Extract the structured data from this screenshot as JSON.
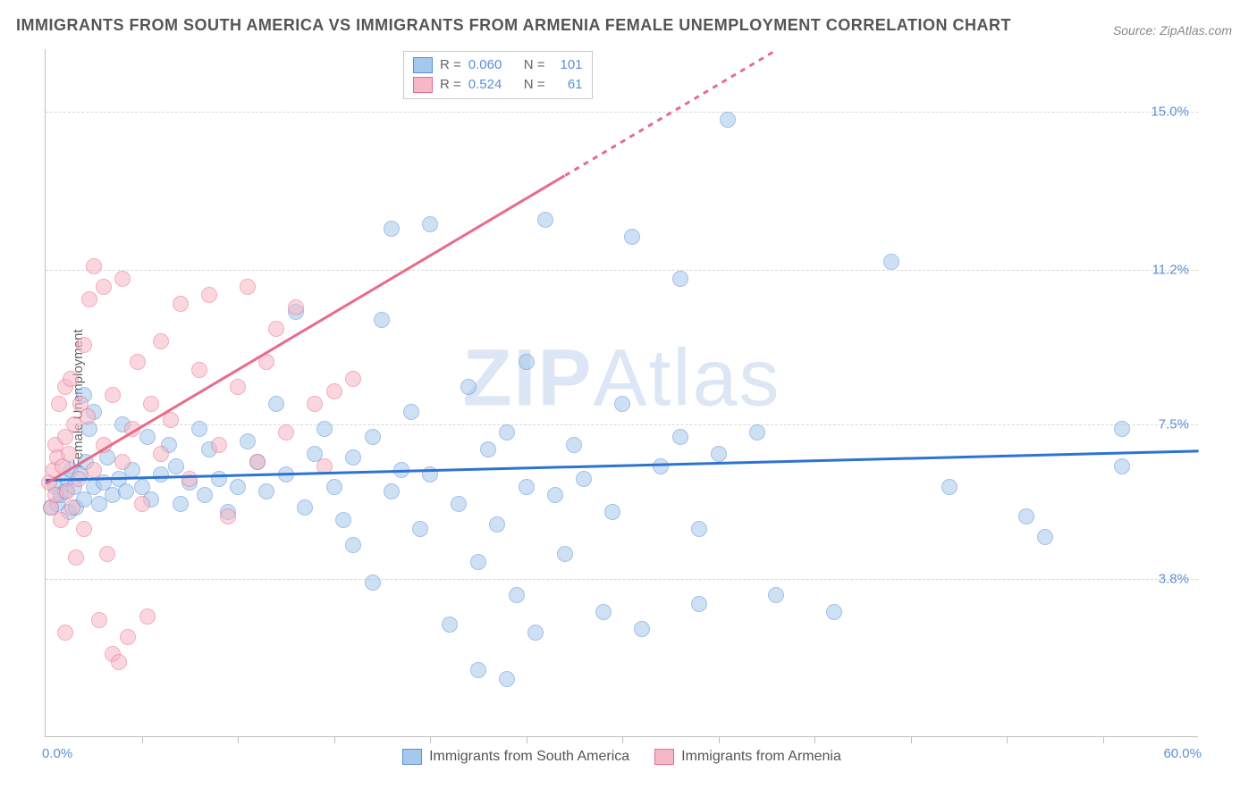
{
  "title": "IMMIGRANTS FROM SOUTH AMERICA VS IMMIGRANTS FROM ARMENIA FEMALE UNEMPLOYMENT CORRELATION CHART",
  "source": "Source: ZipAtlas.com",
  "ylabel": "Female Unemployment",
  "watermark_bold": "ZIP",
  "watermark_light": "Atlas",
  "chart": {
    "type": "scatter",
    "xlim": [
      0,
      60
    ],
    "ylim": [
      0,
      16.5
    ],
    "x_min_label": "0.0%",
    "x_max_label": "60.0%",
    "x_tick_positions": [
      5,
      10,
      15,
      20,
      25,
      30,
      35,
      40,
      45,
      50,
      55
    ],
    "y_ticks": [
      {
        "value": 3.8,
        "label": "3.8%"
      },
      {
        "value": 7.5,
        "label": "7.5%"
      },
      {
        "value": 11.2,
        "label": "11.2%"
      },
      {
        "value": 15.0,
        "label": "15.0%"
      }
    ],
    "background_color": "#ffffff",
    "grid_color": "#d8d8d8",
    "axis_color": "#c0c0c0",
    "series": [
      {
        "name": "Immigrants from South America",
        "color_fill": "#a6c8ec",
        "color_stroke": "#5b8fd6",
        "marker_radius": 9,
        "fill_opacity": 0.55,
        "regression": {
          "x1": 0,
          "y1": 6.2,
          "x2": 60,
          "y2": 6.9,
          "color": "#2d73d2",
          "width": 2.5,
          "dash_after_x": 60
        },
        "R": "0.060",
        "N": "101",
        "points": [
          [
            0.3,
            5.5
          ],
          [
            0.5,
            6.0
          ],
          [
            0.6,
            5.6
          ],
          [
            0.8,
            5.8
          ],
          [
            1.0,
            5.9
          ],
          [
            1.1,
            6.2
          ],
          [
            1.2,
            5.4
          ],
          [
            1.3,
            6.4
          ],
          [
            1.5,
            6.0
          ],
          [
            1.6,
            5.5
          ],
          [
            1.8,
            6.3
          ],
          [
            2.0,
            5.7
          ],
          [
            2.1,
            6.6
          ],
          [
            2.3,
            7.4
          ],
          [
            2.5,
            6.0
          ],
          [
            2.5,
            7.8
          ],
          [
            2.8,
            5.6
          ],
          [
            3.0,
            6.1
          ],
          [
            3.2,
            6.7
          ],
          [
            3.5,
            5.8
          ],
          [
            3.8,
            6.2
          ],
          [
            4.0,
            7.5
          ],
          [
            4.2,
            5.9
          ],
          [
            4.5,
            6.4
          ],
          [
            5.0,
            6.0
          ],
          [
            5.3,
            7.2
          ],
          [
            5.5,
            5.7
          ],
          [
            6.0,
            6.3
          ],
          [
            6.4,
            7.0
          ],
          [
            6.8,
            6.5
          ],
          [
            7.0,
            5.6
          ],
          [
            7.5,
            6.1
          ],
          [
            8.0,
            7.4
          ],
          [
            8.3,
            5.8
          ],
          [
            8.5,
            6.9
          ],
          [
            9.0,
            6.2
          ],
          [
            9.5,
            5.4
          ],
          [
            10.0,
            6.0
          ],
          [
            10.5,
            7.1
          ],
          [
            11.0,
            6.6
          ],
          [
            11.5,
            5.9
          ],
          [
            12.0,
            8.0
          ],
          [
            12.5,
            6.3
          ],
          [
            13.0,
            10.2
          ],
          [
            13.5,
            5.5
          ],
          [
            14.0,
            6.8
          ],
          [
            14.5,
            7.4
          ],
          [
            15.0,
            6.0
          ],
          [
            15.5,
            5.2
          ],
          [
            16.0,
            6.7
          ],
          [
            16.0,
            4.6
          ],
          [
            17.0,
            7.2
          ],
          [
            17.0,
            3.7
          ],
          [
            17.5,
            10.0
          ],
          [
            18.0,
            5.9
          ],
          [
            18.5,
            6.4
          ],
          [
            18.0,
            12.2
          ],
          [
            19.0,
            7.8
          ],
          [
            19.5,
            5.0
          ],
          [
            20.0,
            6.3
          ],
          [
            20.0,
            12.3
          ],
          [
            21.0,
            2.7
          ],
          [
            21.5,
            5.6
          ],
          [
            22.0,
            8.4
          ],
          [
            22.5,
            4.2
          ],
          [
            22.5,
            1.6
          ],
          [
            23.0,
            6.9
          ],
          [
            23.5,
            5.1
          ],
          [
            24.0,
            7.3
          ],
          [
            24.5,
            3.4
          ],
          [
            24.0,
            1.4
          ],
          [
            25.0,
            6.0
          ],
          [
            25.0,
            9.0
          ],
          [
            25.5,
            2.5
          ],
          [
            26.0,
            12.4
          ],
          [
            26.5,
            5.8
          ],
          [
            27.0,
            4.4
          ],
          [
            27.5,
            7.0
          ],
          [
            28.0,
            6.2
          ],
          [
            29.0,
            3.0
          ],
          [
            29.5,
            5.4
          ],
          [
            30.0,
            8.0
          ],
          [
            30.5,
            12.0
          ],
          [
            31.0,
            2.6
          ],
          [
            32.0,
            6.5
          ],
          [
            33.0,
            7.2
          ],
          [
            33.0,
            11.0
          ],
          [
            34.0,
            5.0
          ],
          [
            34.0,
            3.2
          ],
          [
            35.0,
            6.8
          ],
          [
            35.5,
            14.8
          ],
          [
            37.0,
            7.3
          ],
          [
            38.0,
            3.4
          ],
          [
            41.0,
            3.0
          ],
          [
            44.0,
            11.4
          ],
          [
            47.0,
            6.0
          ],
          [
            51.0,
            5.3
          ],
          [
            52.0,
            4.8
          ],
          [
            56.0,
            6.5
          ],
          [
            56.0,
            7.4
          ],
          [
            2.0,
            8.2
          ]
        ]
      },
      {
        "name": "Immigrants from Armenia",
        "color_fill": "#f6b8c6",
        "color_stroke": "#e86b8a",
        "marker_radius": 9,
        "fill_opacity": 0.55,
        "regression": {
          "x1": 0,
          "y1": 6.1,
          "x2": 38,
          "y2": 16.5,
          "color": "#e86b8a",
          "width": 2.5,
          "dash_after_x": 27
        },
        "R": "0.524",
        "N": "61",
        "points": [
          [
            0.2,
            6.1
          ],
          [
            0.3,
            5.5
          ],
          [
            0.4,
            6.4
          ],
          [
            0.5,
            7.0
          ],
          [
            0.5,
            5.8
          ],
          [
            0.6,
            6.7
          ],
          [
            0.7,
            8.0
          ],
          [
            0.8,
            5.2
          ],
          [
            0.9,
            6.5
          ],
          [
            1.0,
            7.2
          ],
          [
            1.0,
            8.4
          ],
          [
            1.1,
            5.9
          ],
          [
            1.2,
            6.8
          ],
          [
            1.3,
            8.6
          ],
          [
            1.4,
            5.5
          ],
          [
            1.5,
            7.5
          ],
          [
            1.6,
            4.3
          ],
          [
            1.7,
            6.2
          ],
          [
            1.8,
            8.0
          ],
          [
            2.0,
            9.4
          ],
          [
            2.0,
            5.0
          ],
          [
            2.2,
            7.7
          ],
          [
            2.3,
            10.5
          ],
          [
            2.5,
            6.4
          ],
          [
            2.5,
            11.3
          ],
          [
            2.8,
            2.8
          ],
          [
            3.0,
            7.0
          ],
          [
            3.0,
            10.8
          ],
          [
            3.2,
            4.4
          ],
          [
            3.5,
            2.0
          ],
          [
            3.5,
            8.2
          ],
          [
            3.8,
            1.8
          ],
          [
            4.0,
            6.6
          ],
          [
            4.0,
            11.0
          ],
          [
            4.3,
            2.4
          ],
          [
            4.5,
            7.4
          ],
          [
            4.8,
            9.0
          ],
          [
            5.0,
            5.6
          ],
          [
            5.3,
            2.9
          ],
          [
            5.5,
            8.0
          ],
          [
            6.0,
            6.8
          ],
          [
            6.0,
            9.5
          ],
          [
            6.5,
            7.6
          ],
          [
            7.0,
            10.4
          ],
          [
            7.5,
            6.2
          ],
          [
            8.0,
            8.8
          ],
          [
            8.5,
            10.6
          ],
          [
            9.0,
            7.0
          ],
          [
            9.5,
            5.3
          ],
          [
            10.0,
            8.4
          ],
          [
            10.5,
            10.8
          ],
          [
            11.0,
            6.6
          ],
          [
            12.0,
            9.8
          ],
          [
            12.5,
            7.3
          ],
          [
            13.0,
            10.3
          ],
          [
            14.0,
            8.0
          ],
          [
            15.0,
            8.3
          ],
          [
            16.0,
            8.6
          ],
          [
            14.5,
            6.5
          ],
          [
            11.5,
            9.0
          ],
          [
            1.0,
            2.5
          ]
        ]
      }
    ],
    "legend_top": {
      "R_label": "R =",
      "N_label": "N ="
    },
    "legend_bottom": [
      {
        "swatch_fill": "#a6c8ec",
        "swatch_stroke": "#5b8fd6",
        "label": "Immigrants from South America"
      },
      {
        "swatch_fill": "#f6b8c6",
        "swatch_stroke": "#e86b8a",
        "label": "Immigrants from Armenia"
      }
    ]
  }
}
